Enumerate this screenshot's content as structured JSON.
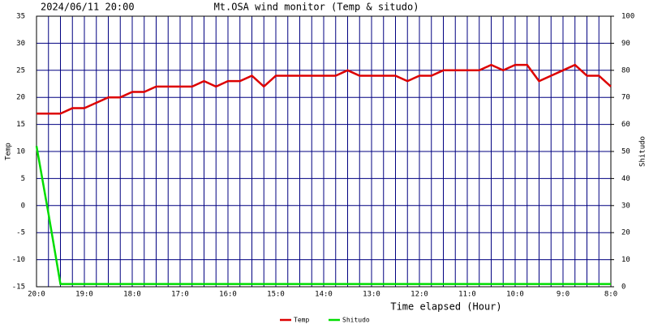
{
  "chart_data": {
    "type": "line",
    "title": "Mt.OSA wind monitor (Temp & situdo)",
    "subtitle": "2024/06/11 20:00",
    "xlabel": "Time elapsed (Hour)",
    "ylabel": "Temp",
    "y2label": "Shitudo",
    "x": [
      0,
      0.25,
      0.5,
      0.75,
      1,
      1.25,
      1.5,
      1.75,
      2,
      2.25,
      2.5,
      2.75,
      3,
      3.25,
      3.5,
      3.75,
      4,
      4.25,
      4.5,
      4.75,
      5,
      5.25,
      5.5,
      5.75,
      6,
      6.25,
      6.5,
      6.75,
      7,
      7.25,
      7.5,
      7.75,
      8,
      8.25,
      8.5,
      8.75,
      9,
      9.25,
      9.5,
      9.75,
      10,
      10.25,
      10.5,
      10.75,
      11,
      11.25,
      11.5,
      11.75,
      12
    ],
    "series": [
      {
        "name": "Temp",
        "color": "#dd0000",
        "values": [
          17,
          17,
          17,
          18,
          18,
          19,
          20,
          20,
          21,
          21,
          22,
          22,
          22,
          22,
          23,
          22,
          23,
          23,
          24,
          22,
          24,
          24,
          24,
          24,
          24,
          24,
          25,
          24,
          24,
          24,
          24,
          23,
          24,
          24,
          25,
          25,
          25,
          25,
          26,
          25,
          26,
          26,
          23,
          24,
          25,
          26,
          24,
          24,
          22
        ]
      },
      {
        "name": "Shitudo",
        "color": "#00dd00",
        "axis": "y2",
        "values": [
          52,
          27,
          1,
          1,
          1,
          1,
          1,
          1,
          1,
          1,
          1,
          1,
          1,
          1,
          1,
          1,
          1,
          1,
          1,
          1,
          1,
          1,
          1,
          1,
          1,
          1,
          1,
          1,
          1,
          1,
          1,
          1,
          1,
          1,
          1,
          1,
          1,
          1,
          1,
          1,
          1,
          1,
          1,
          1,
          1,
          1,
          1,
          1,
          1
        ]
      }
    ],
    "xlim": [
      0,
      12
    ],
    "xticks": [
      {
        "value": 0,
        "label": "20:0"
      },
      {
        "value": 1,
        "label": "19:0"
      },
      {
        "value": 2,
        "label": "18:0"
      },
      {
        "value": 3,
        "label": "17:0"
      },
      {
        "value": 4,
        "label": "16:0"
      },
      {
        "value": 5,
        "label": "15:0"
      },
      {
        "value": 6,
        "label": "14:0"
      },
      {
        "value": 7,
        "label": "13:0"
      },
      {
        "value": 8,
        "label": "12:0"
      },
      {
        "value": 9,
        "label": "11:0"
      },
      {
        "value": 10,
        "label": "10:0"
      },
      {
        "value": 11,
        "label": "9:0"
      },
      {
        "value": 12,
        "label": "8:0"
      }
    ],
    "minor_per_tick": 4,
    "ylim": [
      -15,
      35
    ],
    "yticks": [
      -15,
      -10,
      -5,
      0,
      5,
      10,
      15,
      20,
      25,
      30,
      35
    ],
    "y2lim": [
      0,
      100
    ],
    "y2ticks": [
      0,
      10,
      20,
      30,
      40,
      50,
      60,
      70,
      80,
      90,
      100
    ],
    "grid": true,
    "grid_color": "#000080",
    "legend": "bottom"
  }
}
